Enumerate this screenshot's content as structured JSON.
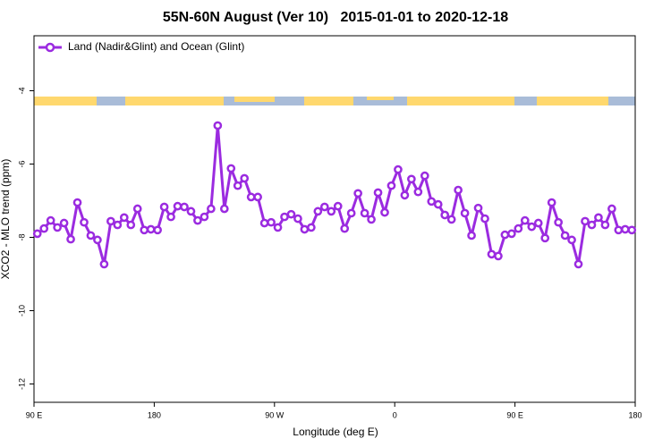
{
  "chart_data": {
    "type": "line",
    "title": "55N-60N August (Ver 10)   2015-01-01 to 2020-12-18",
    "x_label": "Longitude (deg E)",
    "y_label": "XCO2 - MLO trend (ppm)",
    "legend": "upper left",
    "xlim": [
      90,
      540
    ],
    "ylim": [
      -12.5,
      -2.5
    ],
    "xticks": [
      {
        "value": 90,
        "label": "90 E"
      },
      {
        "value": 180,
        "label": "180"
      },
      {
        "value": 270,
        "label": "90 W"
      },
      {
        "value": 360,
        "label": "0"
      },
      {
        "value": 450,
        "label": "90 E"
      },
      {
        "value": 540,
        "label": "180"
      }
    ],
    "yticks": [
      -4,
      -6,
      -8,
      -10,
      -12
    ],
    "x": [
      92.5,
      97.5,
      102.5,
      107.5,
      112.5,
      117.5,
      122.5,
      127.5,
      132.5,
      137.5,
      142.5,
      147.5,
      152.5,
      157.5,
      162.5,
      167.5,
      172.5,
      177.5,
      182.5,
      187.5,
      192.5,
      197.5,
      202.5,
      207.5,
      212.5,
      217.5,
      222.5,
      227.5,
      232.5,
      237.5,
      242.5,
      247.5,
      252.5,
      257.5,
      262.5,
      267.5,
      272.5,
      277.5,
      282.5,
      287.5,
      292.5,
      297.5,
      302.5,
      307.5,
      312.5,
      317.5,
      322.5,
      327.5,
      332.5,
      337.5,
      342.5,
      347.5,
      352.5,
      357.5,
      362.5,
      367.5,
      372.5,
      377.5,
      382.5,
      387.5,
      392.5,
      397.5,
      402.5,
      407.5,
      412.5,
      417.5,
      422.5,
      427.5,
      432.5,
      437.5,
      442.5,
      447.5,
      452.5,
      457.5,
      462.5,
      467.5,
      472.5,
      477.5,
      482.5,
      487.5,
      492.5,
      497.5,
      502.5,
      507.5,
      512.5,
      517.5,
      522.5,
      527.5,
      532.5,
      537.5
    ],
    "series": [
      {
        "name": "Land (Nadir&Glint) and Ocean (Glint)",
        "color": "#9b2be0",
        "values": [
          -7.9,
          -7.76,
          -7.54,
          -7.73,
          -7.61,
          -8.05,
          -7.05,
          -7.59,
          -7.95,
          -8.07,
          -8.73,
          -7.56,
          -7.66,
          -7.46,
          -7.66,
          -7.22,
          -7.8,
          -7.78,
          -7.8,
          -7.17,
          -7.44,
          -7.15,
          -7.17,
          -7.29,
          -7.54,
          -7.44,
          -7.22,
          -4.95,
          -7.22,
          -6.12,
          -6.59,
          -6.39,
          -6.9,
          -6.9,
          -7.61,
          -7.59,
          -7.73,
          -7.44,
          -7.37,
          -7.49,
          -7.78,
          -7.73,
          -7.29,
          -7.17,
          -7.29,
          -7.15,
          -7.76,
          -7.34,
          -6.8,
          -7.34,
          -7.51,
          -6.78,
          -7.32,
          -6.59,
          -6.15,
          -6.85,
          -6.41,
          -6.76,
          -6.32,
          -7.02,
          -7.1,
          -7.39,
          -7.51,
          -6.71,
          -7.34,
          -7.95,
          -7.2,
          -7.49,
          -8.46,
          -8.51,
          -7.93,
          -7.9,
          -7.76,
          -7.54,
          -7.71,
          -7.61,
          -8.02,
          -7.05,
          -7.59,
          -7.95,
          -8.07,
          -8.73,
          -7.56,
          -7.66,
          -7.46,
          -7.66,
          -7.22,
          -7.8,
          -7.78,
          -7.8
        ]
      }
    ]
  }
}
